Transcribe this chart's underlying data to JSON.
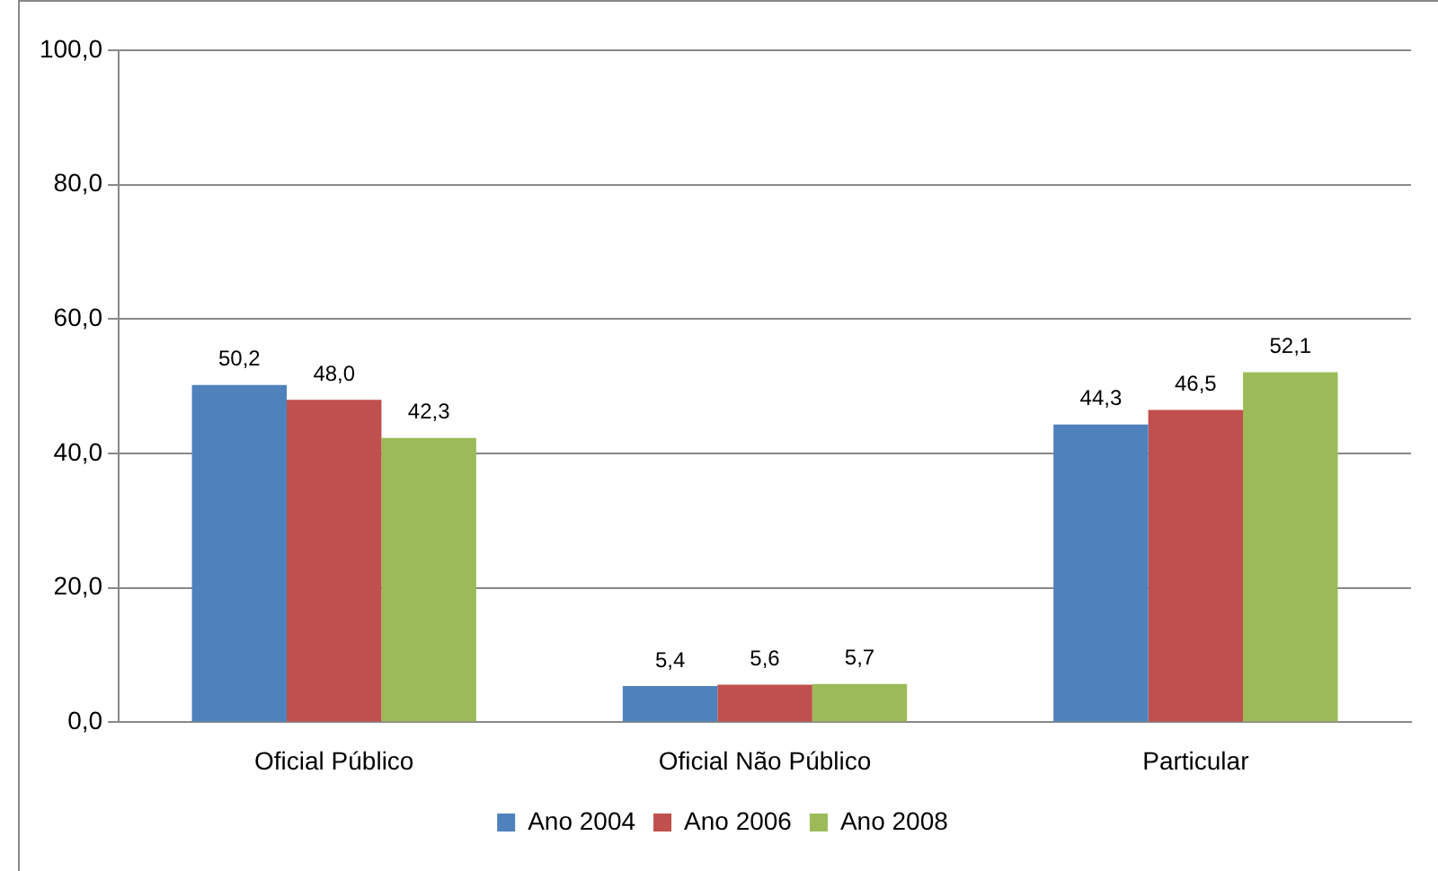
{
  "chart_data": {
    "type": "bar",
    "categories": [
      "Oficial Público",
      "Oficial Não Público",
      "Particular"
    ],
    "series": [
      {
        "name": "Ano 2004",
        "color": "#4f81bd",
        "values": [
          50.2,
          5.4,
          44.3
        ],
        "value_labels": [
          "50,2",
          "5,4",
          "44,3"
        ]
      },
      {
        "name": "Ano 2006",
        "color": "#c0504d",
        "values": [
          48.0,
          5.6,
          46.5
        ],
        "value_labels": [
          "48,0",
          "5,6",
          "46,5"
        ]
      },
      {
        "name": "Ano 2008",
        "color": "#9bbb59",
        "values": [
          42.3,
          5.7,
          52.1
        ],
        "value_labels": [
          "42,3",
          "5,7",
          "52,1"
        ]
      }
    ],
    "ylim": [
      0,
      100
    ],
    "yticks": [
      {
        "value": 0,
        "label": "0,0"
      },
      {
        "value": 20,
        "label": "20,0"
      },
      {
        "value": 40,
        "label": "40,0"
      },
      {
        "value": 60,
        "label": "60,0"
      },
      {
        "value": 80,
        "label": "80,0"
      },
      {
        "value": 100,
        "label": "100,0"
      }
    ],
    "grid": "y",
    "legend": "bottom"
  }
}
